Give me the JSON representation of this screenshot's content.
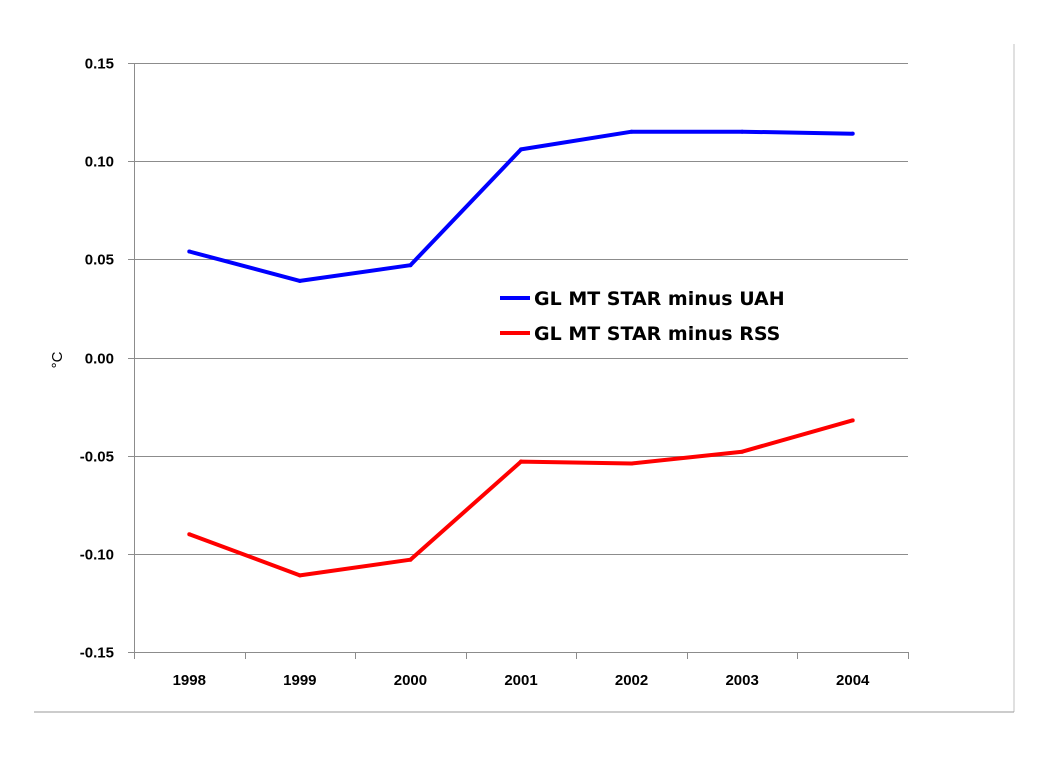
{
  "chart_data": {
    "type": "line",
    "title": "",
    "xlabel": "",
    "ylabel": "°C",
    "categories": [
      "1998",
      "1999",
      "2000",
      "2001",
      "2002",
      "2003",
      "2004"
    ],
    "ylim": [
      -0.15,
      0.15
    ],
    "yticks": [
      0.15,
      0.1,
      0.05,
      0.0,
      -0.05,
      -0.1,
      -0.15
    ],
    "ytick_labels": [
      "0.15",
      "0.10",
      "0.05",
      "0.00",
      "-0.05",
      "-0.10",
      "-0.15"
    ],
    "grid": "horizontal",
    "legend_position": "center-right",
    "series": [
      {
        "name": "GL MT STAR minus UAH",
        "color": "#0000ff",
        "values": [
          0.054,
          0.039,
          0.047,
          0.106,
          0.115,
          0.115,
          0.114
        ]
      },
      {
        "name": "GL MT STAR minus RSS",
        "color": "#ff0000",
        "values": [
          -0.09,
          -0.111,
          -0.103,
          -0.053,
          -0.054,
          -0.048,
          -0.032
        ]
      }
    ]
  }
}
